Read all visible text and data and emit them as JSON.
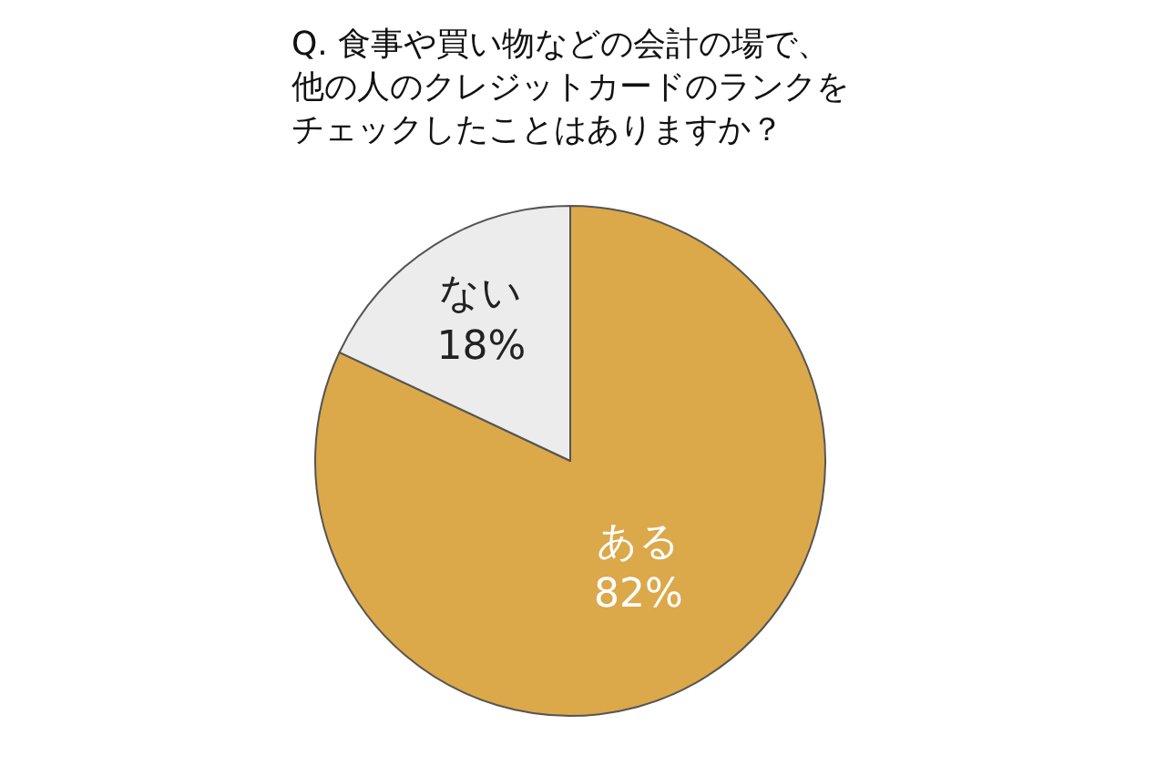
{
  "chart_data": {
    "type": "pie",
    "title": "Q. 食事や買い物などの会計の場で、他の人のクレジットカードのランクをチェックしたことはありますか？",
    "categories": [
      "ある",
      "ない"
    ],
    "values": [
      82,
      18
    ],
    "value_labels": [
      "82%",
      "18%"
    ],
    "colors": [
      "#dba84a",
      "#ececec"
    ],
    "legend": false
  }
}
